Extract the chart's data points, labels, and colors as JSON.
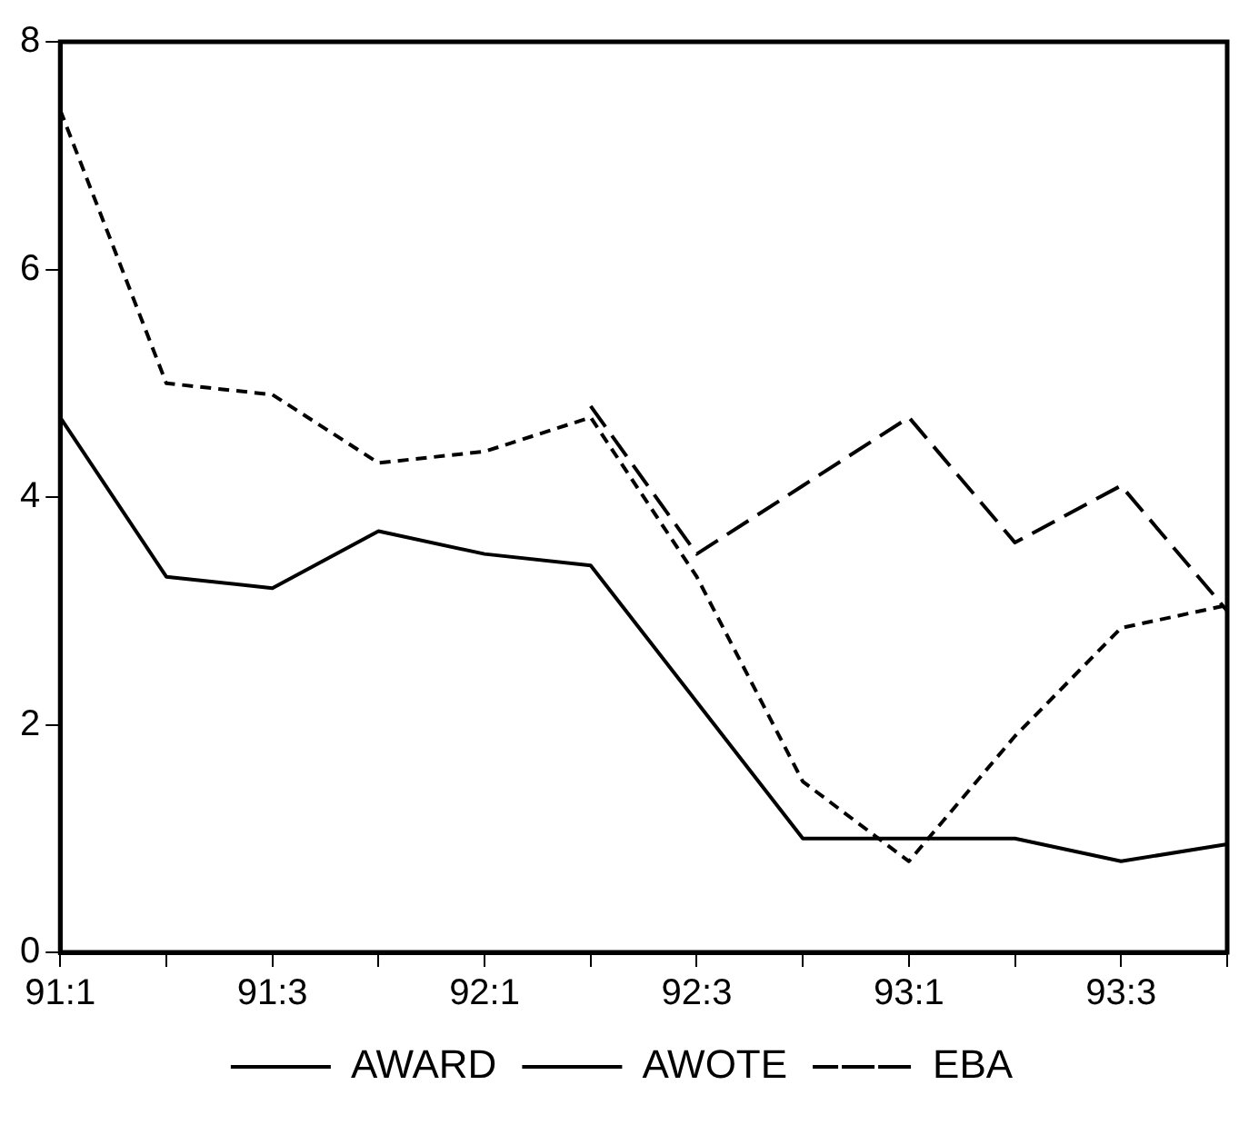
{
  "chart_data": {
    "type": "line",
    "categories": [
      "91:1",
      null,
      "91:3",
      null,
      "92:1",
      null,
      "92:3",
      null,
      "93:1",
      null,
      "93:3",
      null
    ],
    "series": [
      {
        "name": "AWARD",
        "color": "#000000",
        "line_style": "solid",
        "values": [
          4.7,
          3.3,
          3.2,
          3.7,
          3.5,
          3.4,
          2.2,
          1.0,
          1.0,
          1.0,
          0.8,
          0.95
        ]
      },
      {
        "name": "AWOTE",
        "color": "#000000",
        "line_style": "dashed",
        "values": [
          7.4,
          5.0,
          4.9,
          4.3,
          4.4,
          4.7,
          3.3,
          1.5,
          0.8,
          1.9,
          2.85,
          3.05
        ]
      },
      {
        "name": "EBA",
        "color": "#000000",
        "line_style": "dashed",
        "values": [
          null,
          null,
          null,
          null,
          null,
          4.8,
          3.5,
          4.1,
          4.7,
          3.6,
          4.1,
          3.0
        ]
      }
    ],
    "ylim": [
      0,
      8
    ],
    "yticks": [
      0,
      2,
      4,
      6,
      8
    ],
    "grid": false,
    "legend": "bottom",
    "marker": "none"
  }
}
